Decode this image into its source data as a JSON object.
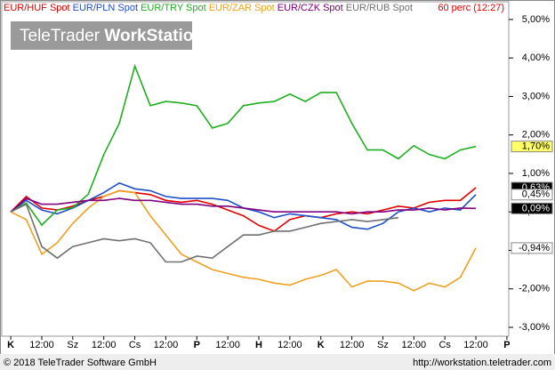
{
  "chart_data": {
    "type": "line",
    "period": "60 perc (12:27)",
    "watermark": {
      "brand": "TeleTrader",
      "product": "WorkStation"
    },
    "copyright": "© 2018 TeleTrader Software GmbH",
    "url": "http://workstation.teletrader.com",
    "x": [
      0,
      0.5,
      1,
      1.5,
      2,
      2.5,
      3,
      3.5,
      4,
      4.5,
      5,
      5.5,
      6,
      6.5,
      7,
      7.5,
      8,
      8.5,
      9,
      9.5,
      10,
      10.5,
      11,
      11.5,
      12,
      12.5,
      13,
      13.5,
      14,
      14.5,
      15
    ],
    "xlim": [
      -0.29,
      16.06
    ],
    "xticks": [
      {
        "value": 0,
        "label": "K"
      },
      {
        "value": 1,
        "label": "12:00"
      },
      {
        "value": 2,
        "label": "Sz"
      },
      {
        "value": 3,
        "label": "12:00"
      },
      {
        "value": 4,
        "label": "Cs"
      },
      {
        "value": 5,
        "label": "12:00"
      },
      {
        "value": 6,
        "label": "P"
      },
      {
        "value": 7,
        "label": "12:00"
      },
      {
        "value": 8,
        "label": "H"
      },
      {
        "value": 9,
        "label": "12:00"
      },
      {
        "value": 10,
        "label": "K"
      },
      {
        "value": 11,
        "label": "12:00"
      },
      {
        "value": 12,
        "label": "Sz"
      },
      {
        "value": 13,
        "label": "12:00"
      },
      {
        "value": 14,
        "label": "Cs"
      },
      {
        "value": 15,
        "label": "12:00"
      },
      {
        "value": 16,
        "label": "P"
      }
    ],
    "ylim": [
      -3.23,
      5.46
    ],
    "yticks": [
      {
        "value": 5,
        "label": "5,00%"
      },
      {
        "value": 4,
        "label": "4,00%"
      },
      {
        "value": 3,
        "label": "3,00%"
      },
      {
        "value": 2,
        "label": "2,00%"
      },
      {
        "value": 1,
        "label": "1,00%"
      },
      {
        "value": 0,
        "label": "0,00%"
      },
      {
        "value": -1,
        "label": "-1,00%"
      },
      {
        "value": -2,
        "label": "-2,00%"
      },
      {
        "value": -3,
        "label": "-3,00%"
      }
    ],
    "series": [
      {
        "name": "EUR/HUF Spot",
        "color": "#e00000",
        "label_bg": "#000000",
        "label_fg": "#ffffff",
        "values": [
          0,
          0.4,
          0.1,
          0.05,
          0.15,
          0.3,
          0.4,
          0.55,
          0.5,
          0.45,
          0.3,
          0.25,
          0.3,
          0.2,
          0.05,
          -0.1,
          -0.35,
          -0.5,
          -0.2,
          -0.1,
          -0.15,
          -0.05,
          0,
          -0.05,
          0.05,
          0.15,
          0.1,
          0.25,
          0.3,
          0.3,
          0.63
        ],
        "value_labels": [
          null,
          null,
          null,
          null,
          null,
          null,
          null,
          null,
          null,
          null,
          null,
          null,
          null,
          null,
          null,
          null,
          null,
          null,
          null,
          null,
          null,
          null,
          null,
          null,
          null,
          null,
          null,
          null,
          null,
          null,
          "0,63%"
        ]
      },
      {
        "name": "EUR/PLN Spot",
        "color": "#1f4fc8",
        "label_bg": "#ffffff",
        "label_fg": "#000000",
        "values": [
          0,
          0.3,
          0.05,
          -0.05,
          0.1,
          0.3,
          0.5,
          0.75,
          0.6,
          0.55,
          0.4,
          0.35,
          0.35,
          0.35,
          0.3,
          0.1,
          0,
          -0.15,
          -0.05,
          -0.1,
          -0.15,
          -0.2,
          -0.4,
          -0.45,
          -0.3,
          0,
          0.1,
          0,
          0.1,
          0.05,
          0.45
        ],
        "value_labels": [
          null,
          null,
          null,
          null,
          null,
          null,
          null,
          null,
          null,
          null,
          null,
          null,
          null,
          null,
          null,
          null,
          null,
          null,
          null,
          null,
          null,
          null,
          null,
          null,
          null,
          null,
          null,
          null,
          null,
          null,
          "0,45%"
        ]
      },
      {
        "name": "EUR/TRY Spot",
        "color": "#1fae1f",
        "label_bg": "#ffff66",
        "label_fg": "#000000",
        "values": [
          0,
          0.23,
          -0.34,
          0.05,
          0.11,
          0.46,
          1.49,
          2.3,
          3.79,
          2.76,
          2.87,
          2.83,
          2.76,
          2.18,
          2.3,
          2.76,
          2.83,
          2.87,
          3.06,
          2.87,
          3.1,
          3.1,
          2.3,
          1.61,
          1.61,
          1.38,
          1.72,
          1.49,
          1.38,
          1.61,
          1.7
        ],
        "value_labels": [
          null,
          null,
          null,
          null,
          null,
          null,
          null,
          null,
          null,
          null,
          null,
          null,
          null,
          null,
          null,
          null,
          null,
          null,
          null,
          null,
          null,
          null,
          null,
          null,
          null,
          null,
          null,
          null,
          null,
          null,
          "1,70%"
        ]
      },
      {
        "name": "EUR/ZAR Spot",
        "color": "#f0a020",
        "label_bg": "#ffffff",
        "label_fg": "#000000",
        "values": [
          0,
          -0.2,
          -1.1,
          -0.8,
          -0.3,
          0.1,
          0.4,
          0.55,
          0.5,
          -0.1,
          -0.6,
          -1.1,
          -1.3,
          -1.5,
          -1.6,
          -1.7,
          -1.75,
          -1.85,
          -1.9,
          -1.75,
          -1.65,
          -1.5,
          -1.95,
          -1.8,
          -1.8,
          -1.85,
          -2.05,
          -1.85,
          -1.95,
          -1.7,
          -0.94
        ],
        "value_labels": [
          null,
          null,
          null,
          null,
          null,
          null,
          null,
          null,
          null,
          null,
          null,
          null,
          null,
          null,
          null,
          null,
          null,
          null,
          null,
          null,
          null,
          null,
          null,
          null,
          null,
          null,
          null,
          null,
          null,
          null,
          "-0,94%"
        ]
      },
      {
        "name": "EUR/CZK Spot",
        "color": "#800080",
        "label_bg": "#000000",
        "label_fg": "#ffffff",
        "values": [
          0,
          0.35,
          0.2,
          0.2,
          0.25,
          0.3,
          0.3,
          0.35,
          0.3,
          0.3,
          0.25,
          0.2,
          0.2,
          0.15,
          0.15,
          0.1,
          0.05,
          0,
          0,
          0,
          0,
          0,
          -0.05,
          0,
          0,
          0.05,
          0.05,
          0.1,
          0.05,
          0.1,
          0.09
        ],
        "value_labels": [
          null,
          null,
          null,
          null,
          null,
          null,
          null,
          null,
          null,
          null,
          null,
          null,
          null,
          null,
          null,
          null,
          null,
          null,
          null,
          null,
          null,
          null,
          null,
          null,
          null,
          null,
          null,
          null,
          null,
          null,
          "0,09%"
        ]
      },
      {
        "name": "EUR/RUB Spot",
        "color": "#707070",
        "values": [
          0,
          0.2,
          -0.9,
          -1.2,
          -0.9,
          -0.8,
          -0.7,
          -0.75,
          -0.7,
          -0.8,
          -1.3,
          -1.3,
          -1.15,
          -1.2,
          -0.9,
          -0.6,
          -0.6,
          -0.5,
          -0.5,
          -0.4,
          -0.3,
          -0.25,
          -0.2,
          -0.25,
          -0.2,
          -0.15,
          null,
          null,
          null,
          null,
          null
        ]
      }
    ]
  }
}
